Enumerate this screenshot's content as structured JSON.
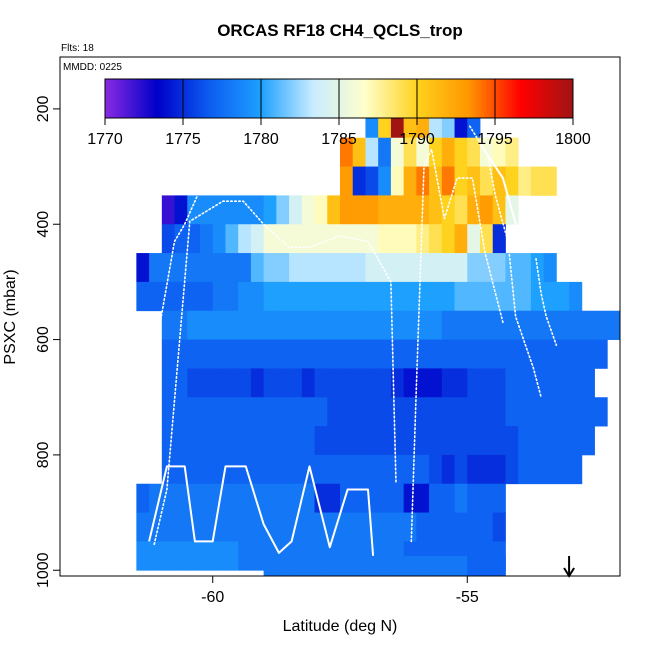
{
  "chart_data": {
    "type": "heatmap",
    "title": "ORCAS RF18 CH4_QCLS_trop",
    "flights_label": "Flts: 18",
    "date_label": "MMDD: 0225",
    "xlabel": "Latitude (deg N)",
    "ylabel": "PSXC (mbar)",
    "xlim": [
      -63.0,
      -52.0
    ],
    "ylim": [
      1010,
      110
    ],
    "x_ticks": [
      -60,
      -55
    ],
    "x_tick_labels": [
      "-60",
      "-55"
    ],
    "y_ticks": [
      200,
      400,
      600,
      800,
      1000
    ],
    "y_tick_labels": [
      "200",
      "400",
      "600",
      "800",
      "1000"
    ],
    "colorbar": {
      "min": 1770,
      "max": 1800,
      "ticks": [
        1770,
        1775,
        1780,
        1785,
        1790,
        1795,
        1800
      ],
      "tick_labels": [
        "1770",
        "1775",
        "1780",
        "1785",
        "1790",
        "1795",
        "1800"
      ],
      "stops": [
        "#8a2be2",
        "#0000c8",
        "#0c5cf0",
        "#1ea0ff",
        "#c8ecff",
        "#ffffcc",
        "#ffd21e",
        "#ff9600",
        "#ff0000",
        "#a01414"
      ]
    },
    "cell_width_deg": 0.25,
    "cell_height_mbar": 50,
    "rows": [
      {
        "p": 225,
        "x0": -57.0,
        "values": [
          1779,
          1790,
          1800,
          1791,
          1792,
          1783,
          1782,
          1774,
          1777
        ]
      },
      {
        "p": 275,
        "x0": -57.5,
        "values": [
          1794,
          1791,
          1783,
          1778,
          1786,
          1789,
          1786,
          1790,
          1792,
          1790,
          1789,
          1786,
          1787,
          1788
        ]
      },
      {
        "p": 325,
        "x0": -57.5,
        "values": [
          1793,
          1775,
          1776,
          1779,
          1787,
          1792,
          1794,
          1791,
          1794,
          1790,
          1791,
          1789,
          1791,
          1790,
          1788,
          1789,
          1789
        ]
      },
      {
        "p": 375,
        "x0": -61.0,
        "values": [
          1772,
          1774,
          1779,
          1779,
          1779,
          1779,
          1779,
          1779,
          1780,
          1782,
          1784,
          1786,
          1787,
          1791,
          1793,
          1793,
          1793,
          1792,
          1792,
          1792,
          1792,
          1791,
          1790,
          1789,
          1792,
          1793,
          1791,
          1785
        ]
      },
      {
        "p": 425,
        "x0": -61.0,
        "values": [
          1776,
          1777,
          1777,
          1778,
          1779,
          1781,
          1783,
          1784,
          1786,
          1786,
          1786,
          1786,
          1786,
          1786,
          1786,
          1786,
          1786,
          1787,
          1787,
          1787,
          1788,
          1789,
          1790,
          1792,
          1785,
          1789,
          1775
        ]
      },
      {
        "p": 475,
        "x0": -61.5,
        "values": [
          1774,
          1778,
          1778,
          1778,
          1778,
          1778,
          1778,
          1778,
          1778,
          1781,
          1782,
          1782,
          1783,
          1783,
          1783,
          1783,
          1783,
          1783,
          1784,
          1784,
          1784,
          1784,
          1784,
          1784,
          1784,
          1784,
          1782,
          1782,
          1782,
          1781,
          1781,
          1780,
          1779
        ]
      },
      {
        "p": 525,
        "x0": -61.5,
        "values": [
          1777,
          1777,
          1777,
          1777,
          1777,
          1777,
          1778,
          1778,
          1779,
          1779,
          1780,
          1780,
          1780,
          1780,
          1780,
          1780,
          1780,
          1780,
          1780,
          1780,
          1780,
          1780,
          1780,
          1780,
          1780,
          1781,
          1781,
          1781,
          1781,
          1781,
          1781,
          1780,
          1780,
          1780,
          1779
        ]
      },
      {
        "p": 575,
        "x0": -61.0,
        "values": [
          1778,
          1778,
          1779,
          1779,
          1779,
          1779,
          1779,
          1779,
          1779,
          1779,
          1779,
          1779,
          1779,
          1779,
          1779,
          1779,
          1779,
          1779,
          1779,
          1779,
          1779,
          1779,
          1778,
          1778,
          1778,
          1778,
          1778,
          1778,
          1778,
          1778,
          1778,
          1778,
          1778,
          1778,
          1778,
          1778
        ]
      },
      {
        "p": 625,
        "x0": -61.0,
        "values": [
          1777,
          1777,
          1777,
          1777,
          1777,
          1777,
          1777,
          1777,
          1777,
          1777,
          1777,
          1777,
          1777,
          1777,
          1777,
          1777,
          1777,
          1777,
          1777,
          1777,
          1777,
          1777,
          1777,
          1777,
          1777,
          1777,
          1777,
          1777,
          1777,
          1777,
          1777,
          1777,
          1777,
          1777,
          1777
        ]
      },
      {
        "p": 675,
        "x0": -61.0,
        "values": [
          1777,
          1777,
          1776,
          1776,
          1776,
          1776,
          1776,
          1775,
          1776,
          1776,
          1776,
          1775,
          1776,
          1776,
          1776,
          1776,
          1776,
          1776,
          1775,
          1774,
          1774,
          1774,
          1775,
          1775,
          1776,
          1776,
          1776,
          1777,
          1777,
          1777,
          1777,
          1777,
          1777,
          1777
        ]
      },
      {
        "p": 725,
        "x0": -61.0,
        "values": [
          1777,
          1777,
          1777,
          1777,
          1777,
          1777,
          1777,
          1777,
          1777,
          1777,
          1777,
          1777,
          1777,
          1776,
          1776,
          1776,
          1776,
          1776,
          1776,
          1776,
          1776,
          1776,
          1776,
          1776,
          1776,
          1776,
          1776,
          1777,
          1777,
          1777,
          1777,
          1777,
          1777,
          1777,
          1777
        ]
      },
      {
        "p": 775,
        "x0": -61.0,
        "values": [
          1777,
          1777,
          1777,
          1777,
          1777,
          1777,
          1777,
          1777,
          1777,
          1777,
          1777,
          1777,
          1776,
          1776,
          1776,
          1776,
          1776,
          1776,
          1776,
          1776,
          1776,
          1776,
          1776,
          1776,
          1776,
          1776,
          1776,
          1776,
          1777,
          1777,
          1777,
          1777,
          1777,
          1777
        ]
      },
      {
        "p": 825,
        "x0": -61.0,
        "values": [
          1777,
          1777,
          1777,
          1777,
          1777,
          1777,
          1777,
          1777,
          1777,
          1777,
          1777,
          1777,
          1777,
          1777,
          1777,
          1777,
          1777,
          1777,
          1777,
          1777,
          1777,
          1776,
          1775,
          1776,
          1775,
          1775,
          1775,
          1776,
          1777,
          1777,
          1777,
          1777,
          1777
        ]
      },
      {
        "p": 875,
        "x0": -61.5,
        "values": [
          1777,
          1778,
          1778,
          1778,
          1778,
          1778,
          1778,
          1778,
          1778,
          1778,
          1778,
          1778,
          1778,
          1778,
          1775,
          1775,
          1777,
          1777,
          1777,
          1777,
          1777,
          1774,
          1774,
          1777,
          1777,
          1778,
          1777,
          1777,
          1777
        ]
      },
      {
        "p": 925,
        "x0": -61.5,
        "values": [
          1778,
          1778,
          1778,
          1778,
          1778,
          1778,
          1778,
          1778,
          1778,
          1778,
          1778,
          1778,
          1778,
          1778,
          1778,
          1778,
          1778,
          1778,
          1778,
          1778,
          1778,
          1778,
          1777,
          1777,
          1777,
          1777,
          1777,
          1777,
          1776
        ]
      },
      {
        "p": 975,
        "x0": -61.5,
        "values": [
          1779,
          1779,
          1779,
          1779,
          1779,
          1779,
          1779,
          1779,
          1778,
          1778,
          1778,
          1778,
          1778,
          1778,
          1778,
          1778,
          1778,
          1778,
          1778,
          1778,
          1778,
          1777,
          1777,
          1777,
          1777,
          1777,
          1777,
          1777,
          1777
        ]
      },
      {
        "p": 1000,
        "x0": -59.0,
        "values": [
          1778,
          1778,
          1778,
          1778,
          1778,
          1778,
          1778,
          1778,
          1778,
          1778,
          1778,
          1778,
          1778,
          1778,
          1778,
          1778,
          1777,
          1777,
          1777
        ]
      }
    ],
    "flight_tracks": [
      {
        "style": "solid",
        "points": [
          [
            -61.25,
            950
          ],
          [
            -60.9,
            820
          ],
          [
            -60.55,
            820
          ],
          [
            -60.35,
            950
          ],
          [
            -60.0,
            950
          ],
          [
            -59.75,
            820
          ],
          [
            -59.35,
            820
          ],
          [
            -59.0,
            920
          ],
          [
            -58.7,
            970
          ],
          [
            -58.45,
            950
          ],
          [
            -58.1,
            820
          ],
          [
            -57.7,
            960
          ],
          [
            -57.35,
            860
          ],
          [
            -56.95,
            860
          ],
          [
            -56.85,
            975
          ]
        ]
      },
      {
        "style": "dotted",
        "points": [
          [
            -61.15,
            955
          ],
          [
            -60.9,
            860
          ],
          [
            -60.45,
            395
          ],
          [
            -59.8,
            360
          ],
          [
            -59.4,
            360
          ],
          [
            -59.0,
            400
          ],
          [
            -58.5,
            440
          ],
          [
            -58.1,
            440
          ],
          [
            -57.5,
            420
          ],
          [
            -56.95,
            430
          ],
          [
            -56.5,
            500
          ],
          [
            -56.4,
            850
          ]
        ]
      },
      {
        "style": "dotted",
        "points": [
          [
            -56.1,
            950
          ],
          [
            -56.0,
            680
          ],
          [
            -55.85,
            300
          ],
          [
            -55.7,
            270
          ],
          [
            -55.45,
            390
          ],
          [
            -55.2,
            320
          ],
          [
            -54.9,
            320
          ],
          [
            -54.65,
            450
          ],
          [
            -54.3,
            570
          ]
        ]
      },
      {
        "style": "dotted",
        "points": [
          [
            -61.35,
            730
          ],
          [
            -60.75,
            430
          ],
          [
            -60.55,
            400
          ],
          [
            -60.3,
            350
          ]
        ]
      },
      {
        "style": "dotted",
        "points": [
          [
            -54.95,
            230
          ],
          [
            -54.6,
            280
          ],
          [
            -54.45,
            350
          ],
          [
            -54.2,
            430
          ],
          [
            -54.05,
            560
          ],
          [
            -53.7,
            650
          ],
          [
            -53.55,
            700
          ]
        ]
      },
      {
        "style": "dotted",
        "points": [
          [
            -53.65,
            460
          ],
          [
            -53.55,
            520
          ],
          [
            -53.45,
            560
          ],
          [
            -53.25,
            610
          ]
        ]
      },
      {
        "style": "solid",
        "points": [
          [
            -54.75,
            260
          ],
          [
            -54.3,
            320
          ],
          [
            -53.95,
            430
          ]
        ]
      }
    ],
    "marker": {
      "type": "down-arrow",
      "x": -53.0
    }
  }
}
